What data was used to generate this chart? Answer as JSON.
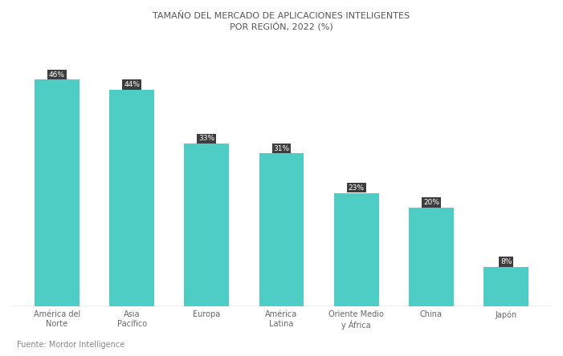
{
  "title_line1": "TAMAÑO DEL MERCADO DE APLICACIONES INTELIGENTES",
  "title_line2": "POR REGIÓN, 2022 (%)",
  "categories": [
    "América del\nNorte",
    "Asia\nPacífico",
    "Europa",
    "América\nLatina",
    "Oriente Medio\ny África",
    "China",
    "Japón"
  ],
  "values": [
    46,
    44,
    33,
    31,
    23,
    20,
    8
  ],
  "bar_labels": [
    "46%",
    "44%",
    "33%",
    "31%",
    "23%",
    "20%",
    "8%"
  ],
  "bar_color": "#4ECDC4",
  "bar_label_bg": "#3d3d3d",
  "bar_label_color": "#ffffff",
  "background_color": "#ffffff",
  "plot_bg_color": "#ffffff",
  "title_color": "#555555",
  "tick_label_color": "#666666",
  "axhline_color": "#aaaaaa",
  "ylim": [
    0,
    54
  ],
  "source_text": "Fuente: Mordor Intelligence",
  "title_fontsize": 8,
  "tick_fontsize": 7,
  "bar_width": 0.6
}
